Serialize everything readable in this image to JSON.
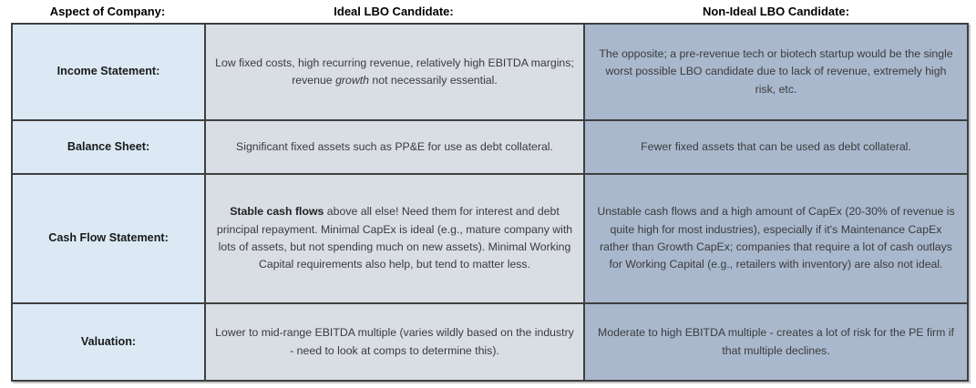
{
  "colors": {
    "aspect_column_bg": "#dce9f5",
    "ideal_column_bg": "#d9dde4",
    "non_ideal_column_bg": "#a9b8cd",
    "table_border": "#3f3f3f",
    "header_text": "#000000",
    "body_text": "#3b3b3b"
  },
  "table": {
    "headers": [
      "Aspect of Company:",
      "Ideal LBO Candidate:",
      "Non-Ideal LBO Candidate:"
    ],
    "rows": [
      {
        "aspect": "Income Statement:",
        "ideal": [
          {
            "text": "Low fixed costs, high recurring revenue, relatively high EBITDA margins; revenue "
          },
          {
            "text": "growth",
            "italic": true
          },
          {
            "text": " not necessarily essential."
          }
        ],
        "non_ideal": [
          {
            "text": "The opposite; a pre-revenue tech or biotech startup would be the single worst possible LBO candidate due to lack of revenue, extremely high risk, etc."
          }
        ]
      },
      {
        "aspect": "Balance Sheet:",
        "ideal": [
          {
            "text": "Significant fixed assets such as PP&E for use as debt collateral."
          }
        ],
        "non_ideal": [
          {
            "text": "Fewer fixed assets that can be used as debt collateral."
          }
        ]
      },
      {
        "aspect": "Cash Flow Statement:",
        "ideal": [
          {
            "text": "Stable cash flows",
            "bold": true
          },
          {
            "text": " above all else! Need them for interest and debt principal repayment. Minimal CapEx is ideal (e.g., mature company with lots of assets, but not spending much on new assets). Minimal Working Capital requirements also help, but tend to matter less."
          }
        ],
        "non_ideal": [
          {
            "text": "Unstable cash flows and a high amount of CapEx (20-30% of revenue is quite high for most industries), especially if it's Maintenance CapEx rather than Growth CapEx; companies that require a lot of cash outlays for Working Capital (e.g., retailers with inventory) are also not ideal."
          }
        ]
      },
      {
        "aspect": "Valuation:",
        "ideal": [
          {
            "text": "Lower to mid-range EBITDA multiple (varies wildly based on the industry - need to look at comps to determine this)."
          }
        ],
        "non_ideal": [
          {
            "text": "Moderate to high EBITDA multiple - creates a lot of risk for the PE firm if that multiple declines."
          }
        ]
      }
    ]
  }
}
